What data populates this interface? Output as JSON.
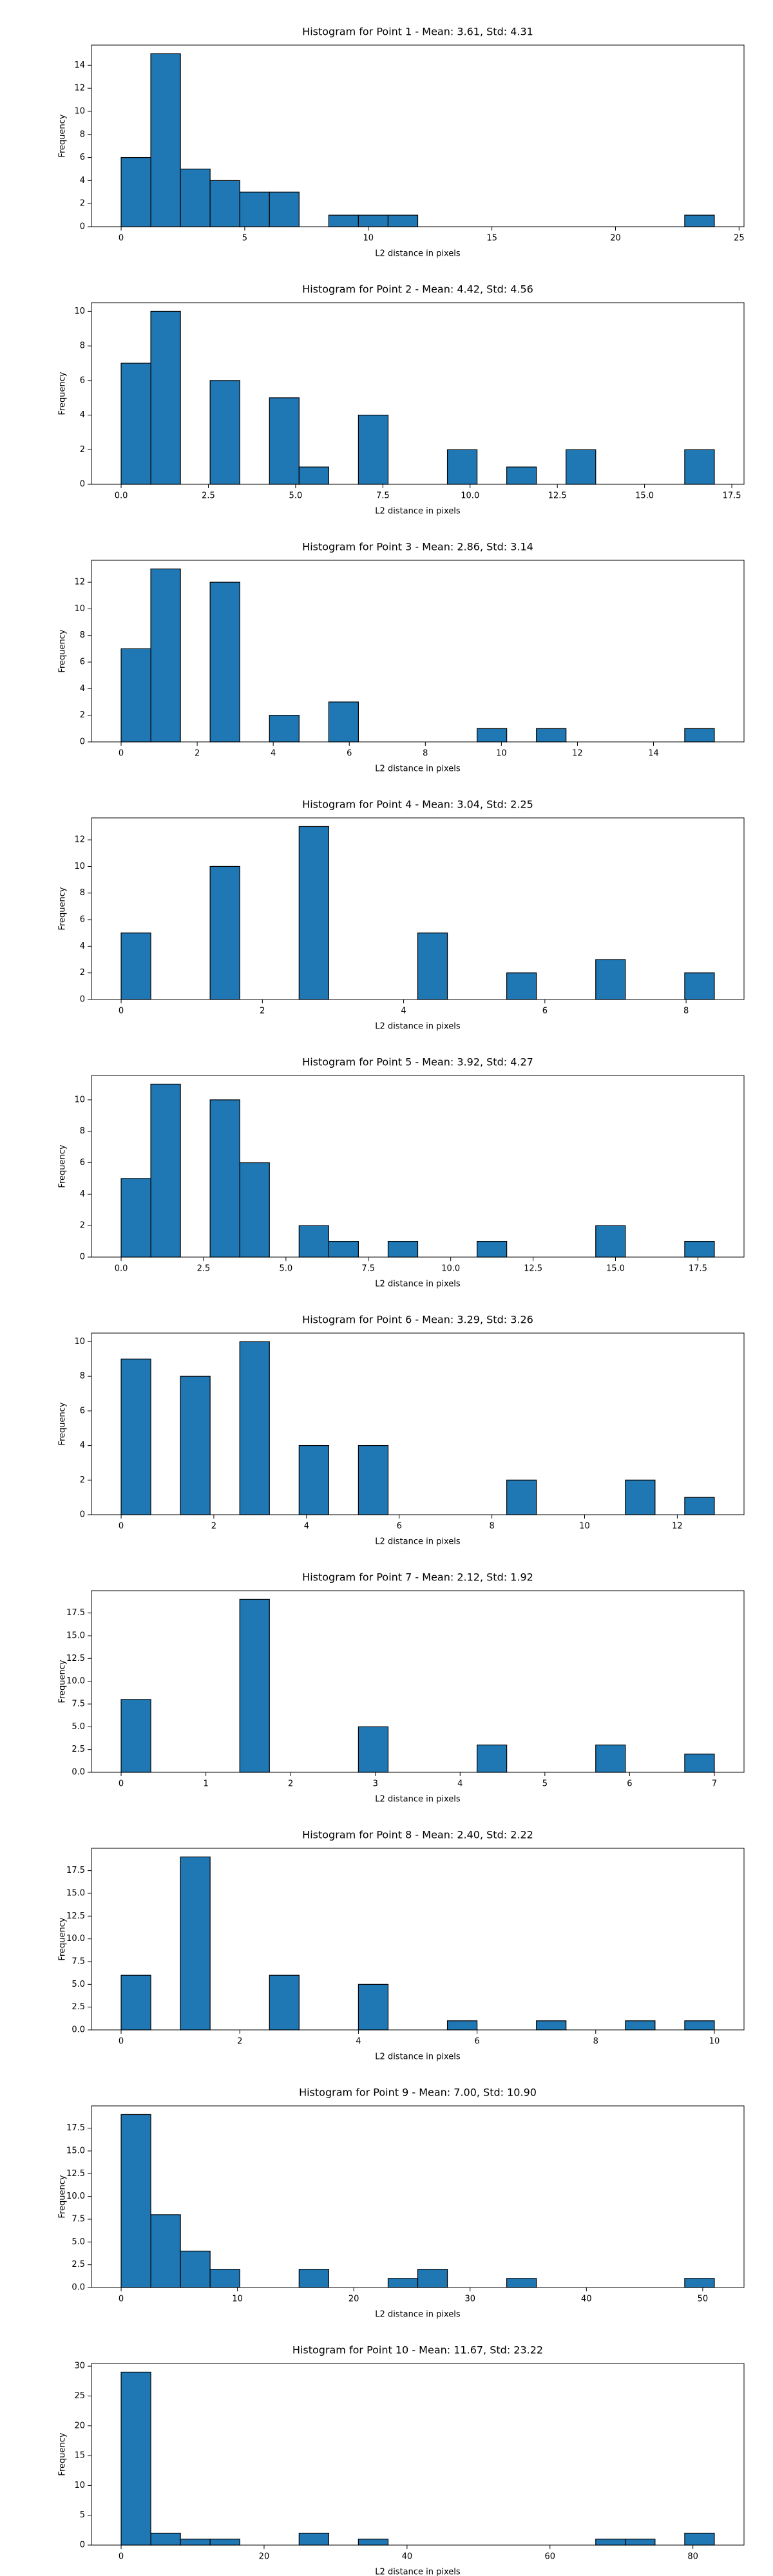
{
  "chart_data": [
    {
      "type": "histogram",
      "title": "Histogram for Point 1 - Mean: 3.61, Std: 4.31",
      "xlabel": "L2 distance in pixels",
      "ylabel": "Frequency",
      "color": "#1f77b4",
      "edgecolor": "#000000",
      "bins": [
        0,
        1.2,
        2.4,
        3.6,
        4.8,
        6,
        7.2,
        8.4,
        9.6,
        10.8,
        12,
        13.2,
        14.4,
        15.6,
        16.8,
        18,
        19.2,
        20.4,
        21.6,
        22.8,
        24
      ],
      "values": [
        6,
        15,
        5,
        4,
        3,
        3,
        0,
        1,
        1,
        1,
        0,
        0,
        0,
        0,
        0,
        0,
        0,
        0,
        0,
        1
      ],
      "xlim": [
        -1.2,
        25.2
      ],
      "ylim": [
        0,
        15.75
      ],
      "xticks": [
        0,
        5,
        10,
        15,
        20,
        25
      ],
      "yticks": [
        0,
        2,
        4,
        6,
        8,
        10,
        12,
        14
      ]
    },
    {
      "type": "histogram",
      "title": "Histogram for Point 2 - Mean: 4.42, Std: 4.56",
      "xlabel": "L2 distance in pixels",
      "ylabel": "Frequency",
      "color": "#1f77b4",
      "edgecolor": "#000000",
      "bins": [
        0,
        0.85,
        1.7,
        2.55,
        3.4,
        4.25,
        5.1,
        5.95,
        6.8,
        7.65,
        8.5,
        9.35,
        10.2,
        11.05,
        11.9,
        12.75,
        13.6,
        14.45,
        15.3,
        16.15,
        17
      ],
      "values": [
        7,
        10,
        0,
        6,
        0,
        5,
        1,
        0,
        4,
        0,
        0,
        2,
        0,
        1,
        0,
        2,
        0,
        0,
        0,
        2
      ],
      "xlim": [
        -0.85,
        17.85
      ],
      "ylim": [
        0,
        10.5
      ],
      "xticks": [
        {
          "value": 0,
          "label": "0.0"
        },
        2.5,
        {
          "value": 5,
          "label": "5.0"
        },
        7.5,
        {
          "value": 10,
          "label": "10.0"
        },
        12.5,
        {
          "value": 15,
          "label": "15.0"
        },
        17.5
      ],
      "yticks": [
        0,
        2,
        4,
        6,
        8,
        10
      ]
    },
    {
      "type": "histogram",
      "title": "Histogram for Point 3 - Mean: 2.86, Std: 3.14",
      "xlabel": "L2 distance in pixels",
      "ylabel": "Frequency",
      "color": "#1f77b4",
      "edgecolor": "#000000",
      "bins": [
        0,
        0.78,
        1.56,
        2.34,
        3.12,
        3.9,
        4.68,
        5.46,
        6.24,
        7.02,
        7.8,
        8.58,
        9.36,
        10.14,
        10.92,
        11.7,
        12.48,
        13.26,
        14.04,
        14.82,
        15.6
      ],
      "values": [
        7,
        13,
        0,
        12,
        0,
        2,
        0,
        3,
        0,
        0,
        0,
        0,
        1,
        0,
        1,
        0,
        0,
        0,
        0,
        1
      ],
      "xlim": [
        -0.78,
        16.38
      ],
      "ylim": [
        0,
        13.65
      ],
      "xticks": [
        0,
        2,
        4,
        6,
        8,
        10,
        12,
        14
      ],
      "yticks": [
        0,
        2,
        4,
        6,
        8,
        10,
        12
      ]
    },
    {
      "type": "histogram",
      "title": "Histogram for Point 4 - Mean: 3.04, Std: 2.25",
      "xlabel": "L2 distance in pixels",
      "ylabel": "Frequency",
      "color": "#1f77b4",
      "edgecolor": "#000000",
      "bins": [
        0,
        0.42,
        0.84,
        1.26,
        1.68,
        2.1,
        2.52,
        2.94,
        3.36,
        3.78,
        4.2,
        4.62,
        5.04,
        5.46,
        5.88,
        6.3,
        6.72,
        7.14,
        7.56,
        7.98,
        8.4
      ],
      "values": [
        5,
        0,
        0,
        10,
        0,
        0,
        13,
        0,
        0,
        0,
        5,
        0,
        0,
        2,
        0,
        0,
        3,
        0,
        0,
        2
      ],
      "xlim": [
        -0.42,
        8.82
      ],
      "ylim": [
        0,
        13.65
      ],
      "xticks": [
        0,
        2,
        4,
        6,
        8
      ],
      "yticks": [
        0,
        2,
        4,
        6,
        8,
        10,
        12
      ]
    },
    {
      "type": "histogram",
      "title": "Histogram for Point 5 - Mean: 3.92, Std: 4.27",
      "xlabel": "L2 distance in pixels",
      "ylabel": "Frequency",
      "color": "#1f77b4",
      "edgecolor": "#000000",
      "bins": [
        0,
        0.9,
        1.8,
        2.7,
        3.6,
        4.5,
        5.4,
        6.3,
        7.2,
        8.1,
        9,
        9.9,
        10.8,
        11.7,
        12.6,
        13.5,
        14.4,
        15.3,
        16.2,
        17.1,
        18
      ],
      "values": [
        5,
        11,
        0,
        10,
        6,
        0,
        2,
        1,
        0,
        1,
        0,
        0,
        1,
        0,
        0,
        0,
        2,
        0,
        0,
        1
      ],
      "xlim": [
        -0.9,
        18.9
      ],
      "ylim": [
        0,
        11.55
      ],
      "xticks": [
        {
          "value": 0,
          "label": "0.0"
        },
        2.5,
        {
          "value": 5,
          "label": "5.0"
        },
        7.5,
        {
          "value": 10,
          "label": "10.0"
        },
        12.5,
        {
          "value": 15,
          "label": "15.0"
        },
        17.5
      ],
      "yticks": [
        0,
        2,
        4,
        6,
        8,
        10
      ]
    },
    {
      "type": "histogram",
      "title": "Histogram for Point 6 - Mean: 3.29, Std: 3.26",
      "xlabel": "L2 distance in pixels",
      "ylabel": "Frequency",
      "color": "#1f77b4",
      "edgecolor": "#000000",
      "bins": [
        0,
        0.64,
        1.28,
        1.92,
        2.56,
        3.2,
        3.84,
        4.48,
        5.12,
        5.76,
        6.4,
        7.04,
        7.68,
        8.32,
        8.96,
        9.6,
        10.24,
        10.88,
        11.52,
        12.16,
        12.8
      ],
      "values": [
        9,
        0,
        8,
        0,
        10,
        0,
        4,
        0,
        4,
        0,
        0,
        0,
        0,
        2,
        0,
        0,
        0,
        2,
        0,
        1
      ],
      "xlim": [
        -0.64,
        13.44
      ],
      "ylim": [
        0,
        10.5
      ],
      "xticks": [
        0,
        2,
        4,
        6,
        8,
        10,
        12
      ],
      "yticks": [
        0,
        2,
        4,
        6,
        8,
        10
      ]
    },
    {
      "type": "histogram",
      "title": "Histogram for Point 7 - Mean: 2.12, Std: 1.92",
      "xlabel": "L2 distance in pixels",
      "ylabel": "Frequency",
      "color": "#1f77b4",
      "edgecolor": "#000000",
      "bins": [
        0,
        0.35,
        0.7,
        1.05,
        1.4,
        1.75,
        2.1,
        2.45,
        2.8,
        3.15,
        3.5,
        3.85,
        4.2,
        4.55,
        4.9,
        5.25,
        5.6,
        5.95,
        6.3,
        6.65,
        7
      ],
      "values": [
        8,
        0,
        0,
        0,
        19,
        0,
        0,
        0,
        5,
        0,
        0,
        0,
        3,
        0,
        0,
        0,
        3,
        0,
        0,
        2
      ],
      "xlim": [
        -0.35,
        7.35
      ],
      "ylim": [
        0,
        19.95
      ],
      "xticks": [
        0,
        1,
        2,
        3,
        4,
        5,
        6,
        7
      ],
      "yticks": [
        {
          "value": 0,
          "label": "0.0"
        },
        2.5,
        {
          "value": 5,
          "label": "5.0"
        },
        7.5,
        {
          "value": 10,
          "label": "10.0"
        },
        12.5,
        {
          "value": 15,
          "label": "15.0"
        },
        17.5
      ]
    },
    {
      "type": "histogram",
      "title": "Histogram for Point 8 - Mean: 2.40, Std: 2.22",
      "xlabel": "L2 distance in pixels",
      "ylabel": "Frequency",
      "color": "#1f77b4",
      "edgecolor": "#000000",
      "bins": [
        0,
        0.5,
        1,
        1.5,
        2,
        2.5,
        3,
        3.5,
        4,
        4.5,
        5,
        5.5,
        6,
        6.5,
        7,
        7.5,
        8,
        8.5,
        9,
        9.5,
        10
      ],
      "values": [
        6,
        0,
        19,
        0,
        0,
        6,
        0,
        0,
        5,
        0,
        0,
        1,
        0,
        0,
        1,
        0,
        0,
        1,
        0,
        1
      ],
      "xlim": [
        -0.5,
        10.5
      ],
      "ylim": [
        0,
        19.95
      ],
      "xticks": [
        0,
        2,
        4,
        6,
        8,
        10
      ],
      "yticks": [
        {
          "value": 0,
          "label": "0.0"
        },
        2.5,
        {
          "value": 5,
          "label": "5.0"
        },
        7.5,
        {
          "value": 10,
          "label": "10.0"
        },
        12.5,
        {
          "value": 15,
          "label": "15.0"
        },
        17.5
      ]
    },
    {
      "type": "histogram",
      "title": "Histogram for Point 9 - Mean: 7.00, Std: 10.90",
      "xlabel": "L2 distance in pixels",
      "ylabel": "Frequency",
      "color": "#1f77b4",
      "edgecolor": "#000000",
      "bins": [
        0,
        2.55,
        5.1,
        7.65,
        10.2,
        12.75,
        15.3,
        17.85,
        20.4,
        22.95,
        25.5,
        28.05,
        30.6,
        33.15,
        35.7,
        38.25,
        40.8,
        43.35,
        45.9,
        48.45,
        51
      ],
      "values": [
        19,
        8,
        4,
        2,
        0,
        0,
        2,
        0,
        0,
        1,
        2,
        0,
        0,
        1,
        0,
        0,
        0,
        0,
        0,
        1
      ],
      "xlim": [
        -2.55,
        53.55
      ],
      "ylim": [
        0,
        19.95
      ],
      "xticks": [
        0,
        10,
        20,
        30,
        40,
        50
      ],
      "yticks": [
        {
          "value": 0,
          "label": "0.0"
        },
        2.5,
        {
          "value": 5,
          "label": "5.0"
        },
        7.5,
        {
          "value": 10,
          "label": "10.0"
        },
        12.5,
        {
          "value": 15,
          "label": "15.0"
        },
        17.5
      ]
    },
    {
      "type": "histogram",
      "title": "Histogram for Point 10 - Mean: 11.67, Std: 23.22",
      "xlabel": "L2 distance in pixels",
      "ylabel": "Frequency",
      "color": "#1f77b4",
      "edgecolor": "#000000",
      "bins": [
        0,
        4.15,
        8.3,
        12.45,
        16.6,
        20.75,
        24.9,
        29.05,
        33.2,
        37.35,
        41.5,
        45.65,
        49.8,
        53.95,
        58.1,
        62.25,
        66.4,
        70.55,
        74.7,
        78.85,
        83
      ],
      "values": [
        29,
        2,
        1,
        1,
        0,
        0,
        2,
        0,
        1,
        0,
        0,
        0,
        0,
        0,
        0,
        0,
        1,
        1,
        0,
        2
      ],
      "xlim": [
        -4.15,
        87.15
      ],
      "ylim": [
        0,
        30.45
      ],
      "xticks": [
        0,
        20,
        40,
        60,
        80
      ],
      "yticks": [
        0,
        5,
        10,
        15,
        20,
        25,
        30
      ]
    }
  ]
}
